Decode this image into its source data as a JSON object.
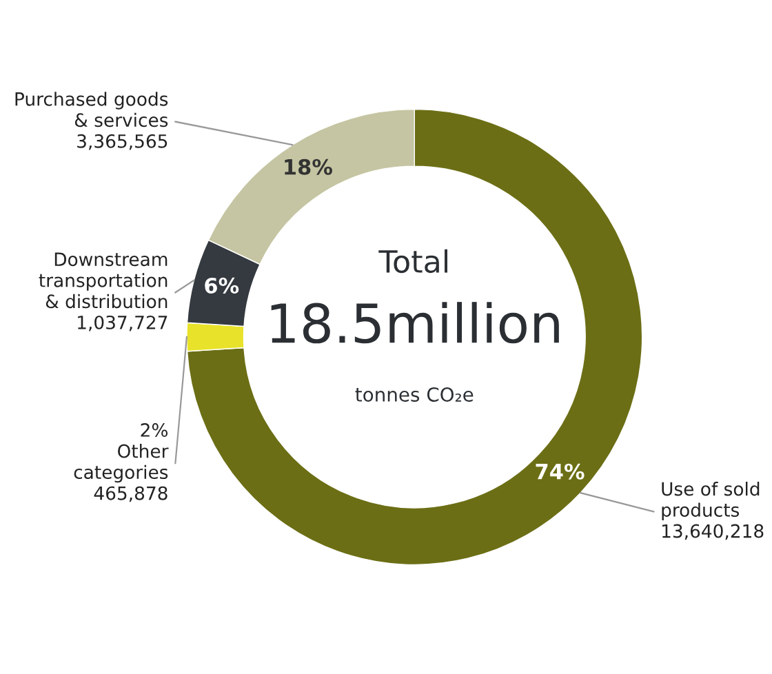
{
  "chart_data": {
    "type": "donut",
    "categories": [
      "Use of sold products",
      "Other categories",
      "Downstream transportation & distribution",
      "Purchased goods & services"
    ],
    "values": [
      74,
      2,
      6,
      18
    ],
    "colors": [
      "#6b6e14",
      "#e8e22a",
      "#343a40",
      "#c5c5a3"
    ],
    "value_labels": [
      "74%",
      "2%",
      "6%",
      "18%"
    ],
    "annotations": [
      "Total",
      "18.5million",
      "tonnes CO₂e",
      {
        "text": "13,640,218",
        "x": "Use of sold products"
      },
      {
        "text": "465,878",
        "x": "Other categories"
      },
      {
        "text": "1,037,727",
        "x": "Downstream transportation & distribution"
      },
      {
        "text": "3,365,565",
        "x": "Purchased goods & services"
      }
    ],
    "legend": false
  }
}
